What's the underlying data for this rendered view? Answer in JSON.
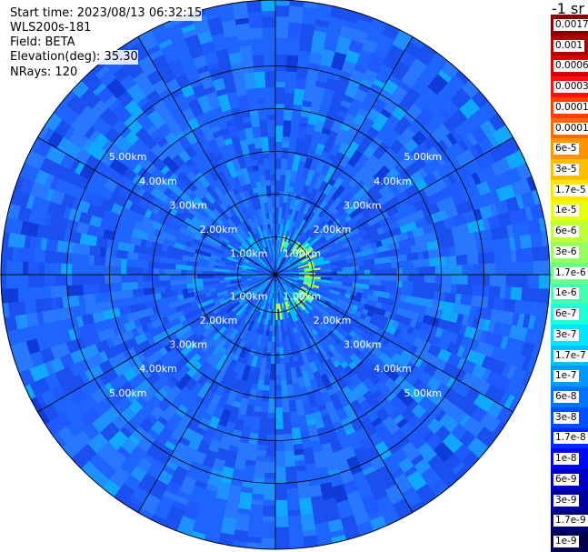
{
  "header": {
    "start_time": "Start time: 2023/08/13 06:32:15",
    "instrument": "WLS200s-181",
    "field": "Field: BETA",
    "elevation": "Elevation(deg): 35.30",
    "nrays": "NRays: 120"
  },
  "chart_data": {
    "type": "heatmap",
    "projection": "polar PPI",
    "field": "BETA",
    "units_label": "-1 sr",
    "n_rays": 120,
    "elevation_deg": 35.3,
    "range_rings_km": [
      1,
      2,
      3,
      4,
      5
    ],
    "range_ring_labels": [
      "1.00km",
      "2.00km",
      "3.00km",
      "4.00km",
      "5.00km"
    ],
    "max_range_km": 6.3,
    "spoke_interval_deg": 30,
    "grid": true,
    "colorbar_position": "right",
    "colorbar_labels": [
      "0.0017",
      "0.001",
      "0.0006",
      "0.0003",
      "0.00017",
      "0.0001",
      "6e-5",
      "3e-5",
      "1.7e-5",
      "1e-5",
      "6e-6",
      "3e-6",
      "1.7e-6",
      "1e-6",
      "6e-7",
      "3e-7",
      "1.7e-7",
      "1e-7",
      "6e-8",
      "3e-8",
      "1.7e-8",
      "1e-8",
      "6e-9",
      "3e-9",
      "1.7e-9",
      "1e-9"
    ],
    "colorbar_colors": [
      "#8b0000",
      "#b00000",
      "#d80000",
      "#ff1010",
      "#ff4000",
      "#ff6a00",
      "#ff9400",
      "#ffbe00",
      "#ffe600",
      "#e6ff10",
      "#beff38",
      "#96ff60",
      "#6eff88",
      "#46ffb0",
      "#1effd8",
      "#00e6ff",
      "#00c0ff",
      "#009aff",
      "#0074ff",
      "#004eff",
      "#0028ff",
      "#0008f0",
      "#0000c8",
      "#0000a0",
      "#000078",
      "#000050"
    ],
    "background_level": "1e-7 to 3e-8",
    "enhanced_ring_km": 0.9,
    "enhanced_ring_level": "1e-6 to 3e-6"
  }
}
